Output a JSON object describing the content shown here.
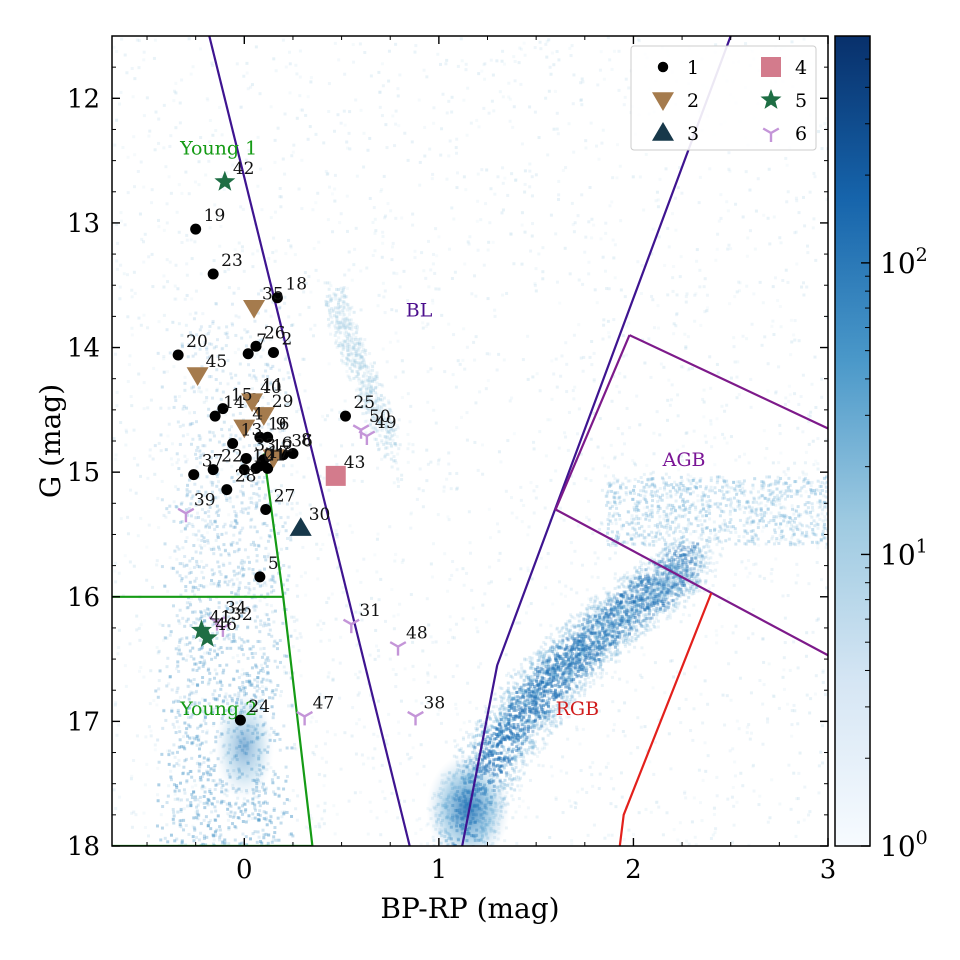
{
  "chart_data": {
    "type": "scatter",
    "xlabel": "BP-RP (mag)",
    "ylabel": "G (mag)",
    "xlim": [
      -0.68,
      3.0
    ],
    "ylim": [
      18.0,
      11.5
    ],
    "x_ticks": [
      {
        "value": 0,
        "label": "0"
      },
      {
        "value": 1,
        "label": "1"
      },
      {
        "value": 2,
        "label": "2"
      },
      {
        "value": 3,
        "label": "3"
      }
    ],
    "y_ticks": [
      {
        "value": 12,
        "label": "12"
      },
      {
        "value": 13,
        "label": "13"
      },
      {
        "value": 14,
        "label": "14"
      },
      {
        "value": 15,
        "label": "15"
      },
      {
        "value": 16,
        "label": "16"
      },
      {
        "value": 17,
        "label": "17"
      },
      {
        "value": 18,
        "label": "18"
      }
    ],
    "colorbar": {
      "scale": "log",
      "range": [
        1,
        600
      ],
      "colormap": "Blues",
      "tick_labels": [
        {
          "value": 1,
          "base": "10",
          "exp": "0"
        },
        {
          "value": 10,
          "base": "10",
          "exp": "1"
        },
        {
          "value": 100,
          "base": "10",
          "exp": "2"
        }
      ]
    },
    "density_background": [
      {
        "name": "main-sequence-ridge",
        "x": [
          -0.15,
          0.25
        ],
        "y": [
          14.5,
          18.0
        ],
        "level": 0.4
      },
      {
        "name": "red-giant-branch",
        "x": [
          1.05,
          2.0
        ],
        "y": [
          15.7,
          18.0
        ],
        "level": 0.7
      },
      {
        "name": "red-clump",
        "x": [
          1.9,
          3.0
        ],
        "y": [
          15.0,
          15.6
        ],
        "level": 0.25
      }
    ],
    "regions": [
      {
        "name": "BL",
        "label": "BL",
        "color": "#4b0d8c",
        "label_x": 0.83,
        "label_y": 13.75,
        "lines": [
          {
            "x": [
              -0.18,
              0.85
            ],
            "y": [
              11.5,
              18.0
            ],
            "color": "#3e1490"
          },
          {
            "x": [
              1.12,
              1.3,
              2.5
            ],
            "y": [
              18.0,
              16.55,
              11.5
            ],
            "color": "#3e1490"
          }
        ]
      },
      {
        "name": "AGB",
        "label": "AGB",
        "color": "#7a1596",
        "label_x": 2.15,
        "label_y": 14.95,
        "lines": [
          {
            "x": [
              1.98,
              3.0
            ],
            "y": [
              13.9,
              14.65
            ],
            "color": "#7d1a8a"
          },
          {
            "x": [
              1.98,
              1.6,
              3.0
            ],
            "y": [
              13.9,
              15.3,
              16.47
            ],
            "color": "#7d1a8a"
          }
        ]
      },
      {
        "name": "RGB",
        "label": "RGB",
        "color": "#d01c1c",
        "label_x": 1.6,
        "label_y": 16.95,
        "lines": [
          {
            "x": [
              2.4,
              1.95,
              1.93
            ],
            "y": [
              15.97,
              17.75,
              18.0
            ],
            "color": "#e3201c"
          }
        ]
      },
      {
        "name": "Young1",
        "label": "Young 1",
        "color": "#159b15",
        "label_x": -0.33,
        "label_y": 12.45,
        "lines": []
      },
      {
        "name": "Young2",
        "label": "Young 2",
        "color": "#159b15",
        "label_x": -0.33,
        "label_y": 16.95,
        "lines": [
          {
            "x": [
              -0.68,
              0.2
            ],
            "y": [
              16.0,
              16.0
            ],
            "color": "#159b15"
          },
          {
            "x": [
              0.1,
              0.2,
              0.35
            ],
            "y": [
              14.85,
              16.0,
              18.0
            ],
            "color": "#159b15"
          },
          {
            "x": [
              -0.68,
              0.35
            ],
            "y": [
              18.0,
              18.0
            ],
            "color": "#159b15"
          }
        ]
      }
    ],
    "legend": {
      "position": "top-right",
      "entries": [
        {
          "label": "1",
          "marker": "circle",
          "color": "#000000"
        },
        {
          "label": "2",
          "marker": "triangle-down",
          "color": "#a57b4d"
        },
        {
          "label": "3",
          "marker": "triangle-up",
          "color": "#17384a"
        },
        {
          "label": "4",
          "marker": "square",
          "color": "#d37b8c"
        },
        {
          "label": "5",
          "marker": "star",
          "color": "#1e6e44"
        },
        {
          "label": "6",
          "marker": "tri-down",
          "color": "#c495d8"
        }
      ]
    },
    "points": [
      {
        "id": "19",
        "group": 1,
        "x": -0.25,
        "y": 13.05
      },
      {
        "id": "23",
        "group": 1,
        "x": -0.16,
        "y": 13.41
      },
      {
        "id": "18",
        "group": 1,
        "x": 0.17,
        "y": 13.6
      },
      {
        "id": "26",
        "group": 1,
        "x": 0.06,
        "y": 13.99
      },
      {
        "id": "2",
        "group": 1,
        "x": 0.15,
        "y": 14.04
      },
      {
        "id": "7",
        "group": 1,
        "x": 0.02,
        "y": 14.05
      },
      {
        "id": "20",
        "group": 1,
        "x": -0.34,
        "y": 14.06
      },
      {
        "id": "11",
        "group": 1,
        "x": 0.05,
        "y": 14.41
      },
      {
        "id": "15",
        "group": 1,
        "x": -0.11,
        "y": 14.49
      },
      {
        "id": "14",
        "group": 1,
        "x": -0.15,
        "y": 14.55
      },
      {
        "id": "25",
        "group": 1,
        "x": 0.52,
        "y": 14.55
      },
      {
        "id": "16",
        "group": 1,
        "x": 0.08,
        "y": 14.72
      },
      {
        "id": "9",
        "group": 1,
        "x": 0.12,
        "y": 14.72
      },
      {
        "id": "13",
        "group": 1,
        "x": -0.06,
        "y": 14.77
      },
      {
        "id": "8",
        "group": 1,
        "x": 0.25,
        "y": 14.85
      },
      {
        "id": "36",
        "group": 1,
        "x": 0.2,
        "y": 14.86
      },
      {
        "id": "33",
        "group": 1,
        "x": 0.01,
        "y": 14.89
      },
      {
        "id": "12",
        "group": 1,
        "x": 0.1,
        "y": 14.9
      },
      {
        "id": "17",
        "group": 1,
        "x": 0.08,
        "y": 14.95
      },
      {
        "id": "21",
        "group": 1,
        "x": 0.06,
        "y": 14.97
      },
      {
        "id": "22",
        "group": 1,
        "x": -0.16,
        "y": 14.98
      },
      {
        "id": "10",
        "group": 1,
        "x": 0.0,
        "y": 14.98
      },
      {
        "id": "1",
        "group": 1,
        "x": 0.12,
        "y": 14.97
      },
      {
        "id": "37",
        "group": 1,
        "x": -0.26,
        "y": 15.02
      },
      {
        "id": "28",
        "group": 1,
        "x": -0.09,
        "y": 15.14
      },
      {
        "id": "27",
        "group": 1,
        "x": 0.11,
        "y": 15.3
      },
      {
        "id": "5",
        "group": 1,
        "x": 0.08,
        "y": 15.84
      },
      {
        "id": "24",
        "group": 1,
        "x": -0.02,
        "y": 16.99
      },
      {
        "id": "35",
        "group": 2,
        "x": 0.05,
        "y": 13.68
      },
      {
        "id": "45",
        "group": 2,
        "x": -0.24,
        "y": 14.22
      },
      {
        "id": "40",
        "group": 2,
        "x": 0.04,
        "y": 14.43
      },
      {
        "id": "29",
        "group": 2,
        "x": 0.1,
        "y": 14.54
      },
      {
        "id": "4",
        "group": 2,
        "x": 0.0,
        "y": 14.64
      },
      {
        "id": "6",
        "group": 2,
        "x": 0.15,
        "y": 14.88
      },
      {
        "id": "30",
        "group": 3,
        "x": 0.29,
        "y": 15.45
      },
      {
        "id": "43",
        "group": 4,
        "x": 0.47,
        "y": 15.03
      },
      {
        "id": "42",
        "group": 5,
        "x": -0.1,
        "y": 12.67
      },
      {
        "id": "41",
        "group": 5,
        "x": -0.22,
        "y": 16.27
      },
      {
        "id": "46",
        "group": 5,
        "x": -0.19,
        "y": 16.33
      },
      {
        "id": "50",
        "group": 6,
        "x": 0.6,
        "y": 14.66
      },
      {
        "id": "49",
        "group": 6,
        "x": 0.63,
        "y": 14.71
      },
      {
        "id": "39",
        "group": 6,
        "x": -0.3,
        "y": 15.33
      },
      {
        "id": "34",
        "group": 6,
        "x": -0.14,
        "y": 16.2
      },
      {
        "id": "32",
        "group": 6,
        "x": -0.11,
        "y": 16.25
      },
      {
        "id": "31",
        "group": 6,
        "x": 0.55,
        "y": 16.22
      },
      {
        "id": "48",
        "group": 6,
        "x": 0.79,
        "y": 16.4
      },
      {
        "id": "47",
        "group": 6,
        "x": 0.31,
        "y": 16.96
      },
      {
        "id": "38",
        "group": 6,
        "x": 0.88,
        "y": 16.96
      }
    ]
  }
}
